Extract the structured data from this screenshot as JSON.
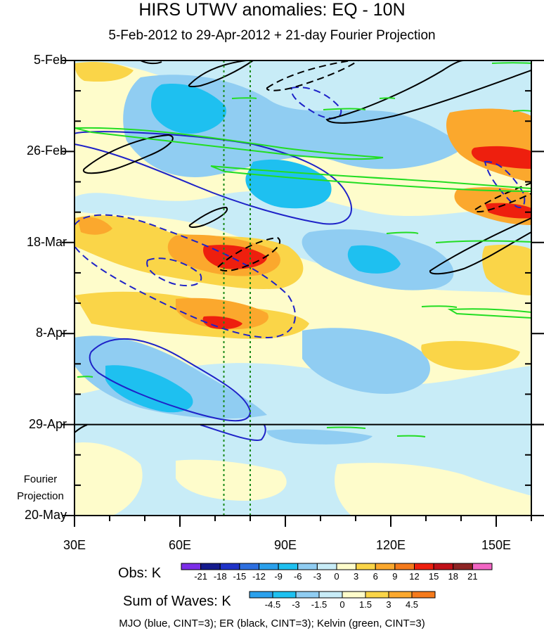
{
  "chart_data": {
    "type": "heatmap",
    "title": "HIRS UTWV anomalies: EQ - 10N",
    "subtitle": "5-Feb-2012 to 29-Apr-2012 + 21-day Fourier Projection",
    "x_axis": {
      "range": [
        30,
        160
      ],
      "ticks": [
        30,
        60,
        90,
        120,
        150
      ],
      "tick_labels": [
        "30E",
        "60E",
        "90E",
        "120E",
        "150E"
      ]
    },
    "y_axis": {
      "tick_labels": [
        "5-Feb",
        "26-Feb",
        "18-Mar",
        "8-Apr",
        "29-Apr",
        "20-May"
      ],
      "tick_day_offsets": [
        0,
        21,
        42,
        63,
        84,
        105
      ]
    },
    "projection_label": "Fourier Projection",
    "projection_start_label": "29-Apr",
    "reference_longitudes": [
      72.5,
      80
    ],
    "obs_colorbar": {
      "title": "Obs: K",
      "levels": [
        "-21",
        "-18",
        "-15",
        "-12",
        "-9",
        "-6",
        "-3",
        "0",
        "3",
        "6",
        "9",
        "12",
        "15",
        "18",
        "21"
      ],
      "colors": [
        "#7c2ee8",
        "#151b8e",
        "#1f33c8",
        "#2d6fe0",
        "#2aa0ec",
        "#1ec0f0",
        "#90cdf2",
        "#c8ecf7",
        "#fefccb",
        "#fad548",
        "#fba82d",
        "#f57a1b",
        "#ee1f0e",
        "#c01018",
        "#8e2424",
        "#f266c4"
      ]
    },
    "waves_colorbar": {
      "title": "Sum of Waves: K",
      "levels": [
        "-4.5",
        "-3",
        "-1.5",
        "0",
        "1.5",
        "3",
        "4.5"
      ],
      "colors": [
        "#2aa0ec",
        "#1ec0f0",
        "#90cdf2",
        "#c8ecf7",
        "#fefccb",
        "#fad548",
        "#fba82d",
        "#f57a1b"
      ]
    },
    "legend_note": "MJO (blue, CINT=3); ER (black, CINT=3); Kelvin (green, CINT=3)"
  }
}
